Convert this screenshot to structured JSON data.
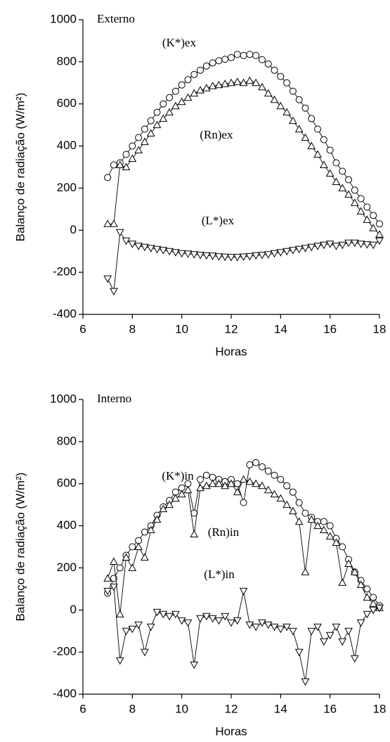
{
  "chart_data": [
    {
      "type": "line",
      "title": "Externo",
      "xlabel": "Horas",
      "ylabel": "Balanço de radiação (W/m²)",
      "xlim": [
        6,
        18
      ],
      "xticks": [
        6,
        8,
        10,
        12,
        14,
        16,
        18
      ],
      "ylim": [
        -400,
        1000
      ],
      "yticks": [
        -400,
        -200,
        0,
        200,
        400,
        600,
        800,
        1000
      ],
      "grid": false,
      "x": [
        7,
        7.25,
        7.5,
        7.75,
        8,
        8.25,
        8.5,
        8.75,
        9,
        9.25,
        9.5,
        9.75,
        10,
        10.25,
        10.5,
        10.75,
        11,
        11.25,
        11.5,
        11.75,
        12,
        12.25,
        12.5,
        12.75,
        13,
        13.25,
        13.5,
        13.75,
        14,
        14.25,
        14.5,
        14.75,
        15,
        15.25,
        15.5,
        15.75,
        16,
        16.25,
        16.5,
        16.75,
        17,
        17.25,
        17.5,
        17.75,
        18
      ],
      "series": [
        {
          "name": "(K*)ex",
          "color": "#000000",
          "marker": "circle",
          "values": [
            250,
            310,
            320,
            360,
            400,
            440,
            480,
            520,
            560,
            600,
            630,
            660,
            690,
            715,
            740,
            760,
            780,
            795,
            805,
            812,
            820,
            835,
            830,
            835,
            830,
            810,
            790,
            760,
            730,
            700,
            660,
            620,
            580,
            530,
            480,
            430,
            380,
            320,
            280,
            240,
            190,
            150,
            110,
            70,
            30
          ]
        },
        {
          "name": "(Rn)ex",
          "color": "#000000",
          "marker": "triangle-up",
          "values": [
            30,
            30,
            310,
            300,
            340,
            380,
            420,
            460,
            500,
            530,
            560,
            590,
            610,
            630,
            650,
            665,
            675,
            685,
            690,
            695,
            700,
            705,
            700,
            710,
            700,
            680,
            650,
            620,
            590,
            560,
            520,
            480,
            440,
            400,
            360,
            310,
            270,
            230,
            200,
            170,
            130,
            90,
            50,
            10,
            -20
          ]
        },
        {
          "name": "(L*)ex",
          "color": "#000000",
          "marker": "triangle-down",
          "values": [
            -230,
            -290,
            -10,
            -50,
            -65,
            -75,
            -80,
            -85,
            -90,
            -95,
            -100,
            -105,
            -110,
            -112,
            -115,
            -118,
            -120,
            -122,
            -125,
            -127,
            -128,
            -128,
            -126,
            -124,
            -120,
            -118,
            -115,
            -110,
            -105,
            -100,
            -95,
            -90,
            -85,
            -80,
            -75,
            -70,
            -65,
            -75,
            -70,
            -60,
            -60,
            -65,
            -68,
            -70,
            -50
          ]
        }
      ]
    },
    {
      "type": "line",
      "title": "Interno",
      "xlabel": "Horas",
      "ylabel": "Balanço de radiação (W/m²)",
      "xlim": [
        6,
        18
      ],
      "xticks": [
        6,
        8,
        10,
        12,
        14,
        16,
        18
      ],
      "ylim": [
        -400,
        1000
      ],
      "yticks": [
        -400,
        -200,
        0,
        200,
        400,
        600,
        800,
        1000
      ],
      "grid": false,
      "x": [
        7,
        7.25,
        7.5,
        7.75,
        8,
        8.25,
        8.5,
        8.75,
        9,
        9.25,
        9.5,
        9.75,
        10,
        10.25,
        10.5,
        10.75,
        11,
        11.25,
        11.5,
        11.75,
        12,
        12.25,
        12.5,
        12.75,
        13,
        13.25,
        13.5,
        13.75,
        14,
        14.25,
        14.5,
        14.75,
        15,
        15.25,
        15.5,
        15.75,
        16,
        16.25,
        16.5,
        16.75,
        17,
        17.25,
        17.5,
        17.75,
        18
      ],
      "series": [
        {
          "name": "(K*)in",
          "color": "#000000",
          "marker": "circle",
          "values": [
            80,
            150,
            200,
            260,
            300,
            330,
            370,
            400,
            450,
            490,
            520,
            560,
            580,
            600,
            460,
            620,
            640,
            630,
            620,
            610,
            620,
            600,
            510,
            690,
            700,
            680,
            660,
            640,
            620,
            590,
            560,
            510,
            460,
            440,
            420,
            420,
            400,
            340,
            300,
            240,
            180,
            140,
            100,
            60,
            20
          ]
        },
        {
          "name": "(Rn)in",
          "color": "#000000",
          "marker": "triangle-up",
          "values": [
            150,
            230,
            -20,
            250,
            200,
            300,
            250,
            380,
            430,
            480,
            500,
            530,
            550,
            570,
            360,
            580,
            590,
            600,
            600,
            590,
            600,
            560,
            620,
            610,
            600,
            590,
            570,
            550,
            530,
            500,
            470,
            420,
            180,
            430,
            400,
            380,
            350,
            320,
            130,
            220,
            180,
            120,
            60,
            30,
            10
          ]
        },
        {
          "name": "(L*)in",
          "color": "#000000",
          "marker": "triangle-down",
          "values": [
            90,
            110,
            -240,
            -100,
            -90,
            -70,
            -200,
            -80,
            -10,
            -20,
            -30,
            -20,
            -50,
            -60,
            -260,
            -40,
            -30,
            -40,
            -50,
            -30,
            -60,
            -50,
            90,
            -70,
            -80,
            -60,
            -70,
            -80,
            -90,
            -80,
            -100,
            -200,
            -340,
            -100,
            -80,
            -150,
            -120,
            -80,
            -150,
            -100,
            -230,
            -60,
            -20,
            0,
            10
          ]
        }
      ]
    }
  ]
}
